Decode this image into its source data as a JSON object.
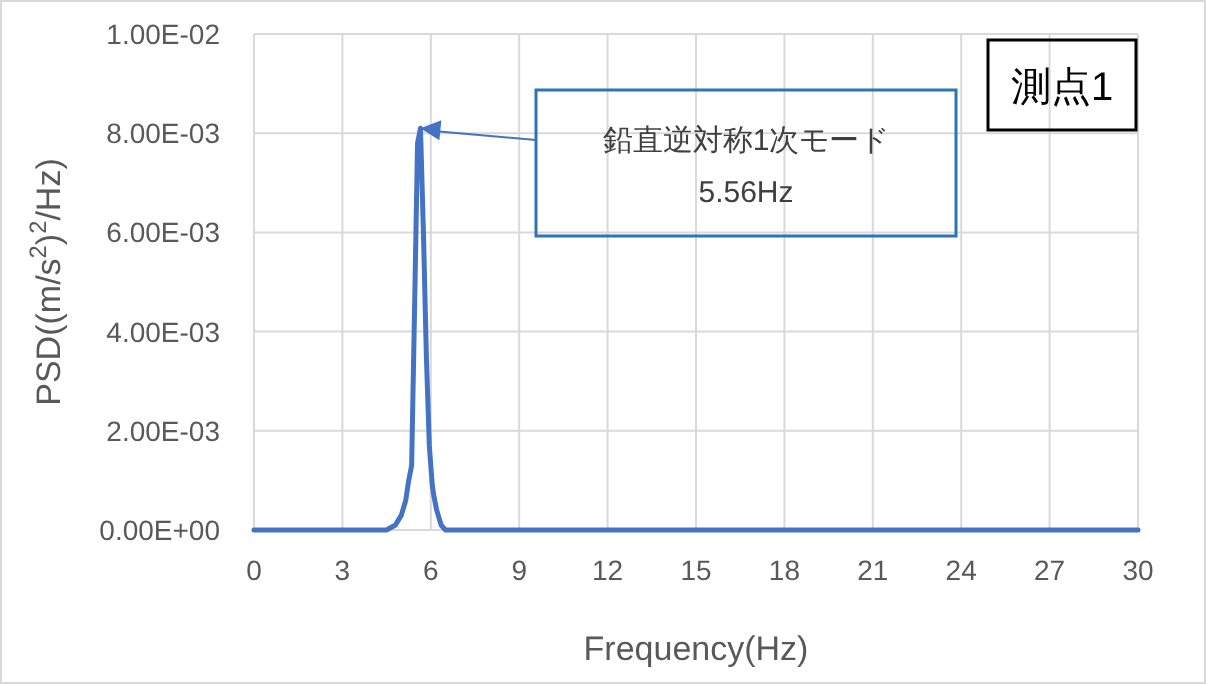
{
  "chart_data": {
    "type": "line",
    "xlabel": "Frequency(Hz)",
    "ylabel": "PSD((m/s$^{2}$)$^{2}$/Hz)",
    "color": "#4472c4",
    "x": [
      0,
      4.5,
      4.8,
      5.0,
      5.15,
      5.25,
      5.35,
      5.45,
      5.55,
      5.65,
      5.75,
      5.85,
      5.95,
      6.05,
      6.1,
      6.2,
      6.35,
      6.5,
      30
    ],
    "values": [
      0,
      0,
      0.0001,
      0.0003,
      0.0006,
      0.001,
      0.0013,
      0.0045,
      0.0078,
      0.0081,
      0.006,
      0.0035,
      0.0017,
      0.0009,
      0.0007,
      0.0004,
      0.0001,
      0,
      0
    ],
    "xlim": [
      0,
      30
    ],
    "ylim": [
      0,
      0.01
    ],
    "xticks": [
      0,
      3,
      6,
      9,
      12,
      15,
      18,
      21,
      24,
      27,
      30
    ],
    "yticks": [
      {
        "value": 0,
        "label": "0.00E+00"
      },
      {
        "value": 0.002,
        "label": "2.00E-03"
      },
      {
        "value": 0.004,
        "label": "4.00E-03"
      },
      {
        "value": 0.006,
        "label": "6.00E-03"
      },
      {
        "value": 0.008,
        "label": "8.00E-03"
      },
      {
        "value": 0.01,
        "label": "1.00E-02"
      }
    ],
    "grid": true,
    "annotations": [
      "測点1",
      "鉛直逆対称1次モード\n5.56Hz"
    ]
  }
}
